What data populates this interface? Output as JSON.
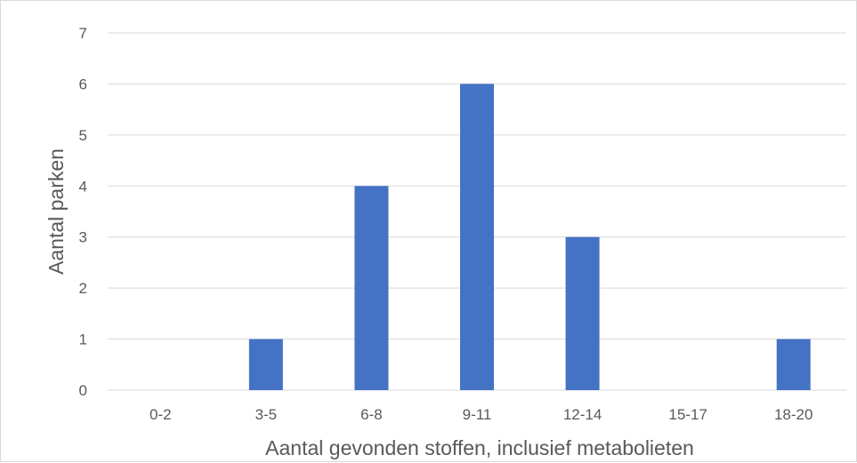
{
  "chart_data": {
    "type": "bar",
    "title": "",
    "xlabel": "Aantal  gevonden stoffen, inclusief metabolieten",
    "ylabel": "Aantal parken",
    "categories": [
      "0-2",
      "3-5",
      "6-8",
      "9-11",
      "12-14",
      "15-17",
      "18-20"
    ],
    "series": [
      {
        "values": [
          0,
          1,
          4,
          6,
          3,
          0,
          1
        ]
      }
    ],
    "ylim": [
      0,
      7
    ],
    "yticks": [
      "0",
      "1",
      "2",
      "3",
      "4",
      "5",
      "6",
      "7"
    ],
    "grid": true,
    "legend": "none",
    "bar_color": "#4472c4",
    "grid_color": "#d9d9d9"
  }
}
